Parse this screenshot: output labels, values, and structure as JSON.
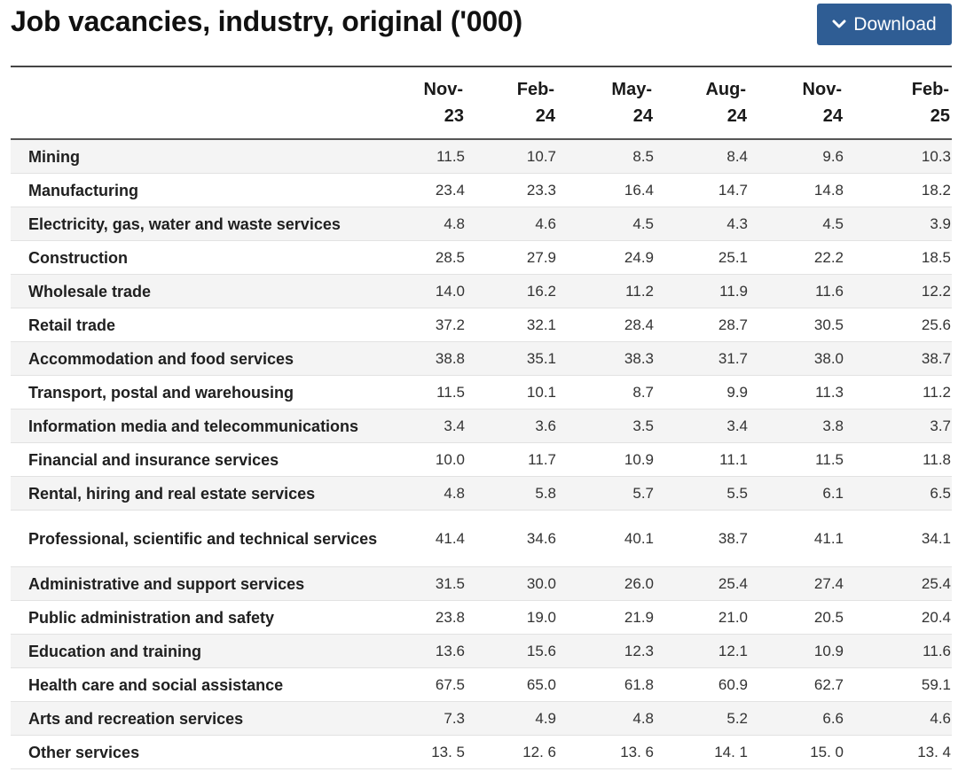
{
  "title": "Job vacancies, industry, original ('000)",
  "download": {
    "label": "Download",
    "icon": "chevron-down-icon"
  },
  "colors": {
    "button_bg": "#2f5d94",
    "stripe": "#f4f4f4"
  },
  "table": {
    "columns": [
      {
        "mon": "Nov-",
        "yr": "23"
      },
      {
        "mon": "Feb-",
        "yr": "24"
      },
      {
        "mon": "May-",
        "yr": "24"
      },
      {
        "mon": "Aug-",
        "yr": "24"
      },
      {
        "mon": "Nov-",
        "yr": "24"
      },
      {
        "mon": "Feb-",
        "yr": "25"
      }
    ],
    "rows": [
      {
        "label": "Mining",
        "values": [
          "11.5",
          "10.7",
          "8.5",
          "8.4",
          "9.6",
          "10.3"
        ]
      },
      {
        "label": "Manufacturing",
        "values": [
          "23.4",
          "23.3",
          "16.4",
          "14.7",
          "14.8",
          "18.2"
        ]
      },
      {
        "label": "Electricity, gas, water and waste services",
        "values": [
          "4.8",
          "4.6",
          "4.5",
          "4.3",
          "4.5",
          "3.9"
        ]
      },
      {
        "label": "Construction",
        "values": [
          "28.5",
          "27.9",
          "24.9",
          "25.1",
          "22.2",
          "18.5"
        ]
      },
      {
        "label": "Wholesale trade",
        "values": [
          "14.0",
          "16.2",
          "11.2",
          "11.9",
          "11.6",
          "12.2"
        ]
      },
      {
        "label": "Retail trade",
        "values": [
          "37.2",
          "32.1",
          "28.4",
          "28.7",
          "30.5",
          "25.6"
        ]
      },
      {
        "label": "Accommodation and food services",
        "values": [
          "38.8",
          "35.1",
          "38.3",
          "31.7",
          "38.0",
          "38.7"
        ]
      },
      {
        "label": "Transport, postal and warehousing",
        "values": [
          "11.5",
          "10.1",
          "8.7",
          "9.9",
          "11.3",
          "11.2"
        ]
      },
      {
        "label": "Information media and telecommunications",
        "values": [
          "3.4",
          "3.6",
          "3.5",
          "3.4",
          "3.8",
          "3.7"
        ]
      },
      {
        "label": "Financial and insurance services",
        "values": [
          "10.0",
          "11.7",
          "10.9",
          "11.1",
          "11.5",
          "11.8"
        ]
      },
      {
        "label": "Rental, hiring and real estate services",
        "values": [
          "4.8",
          "5.8",
          "5.7",
          "5.5",
          "6.1",
          "6.5"
        ]
      },
      {
        "label": "Professional, scientific and technical services",
        "values": [
          "41.4",
          "34.6",
          "40.1",
          "38.7",
          "41.1",
          "34.1"
        ]
      },
      {
        "label": "Administrative and support services",
        "values": [
          "31.5",
          "30.0",
          "26.0",
          "25.4",
          "27.4",
          "25.4"
        ]
      },
      {
        "label": "Public administration and safety",
        "values": [
          "23.8",
          "19.0",
          "21.9",
          "21.0",
          "20.5",
          "20.4"
        ]
      },
      {
        "label": "Education and training",
        "values": [
          "13.6",
          "15.6",
          "12.3",
          "12.1",
          "10.9",
          "11.6"
        ]
      },
      {
        "label": "Health care and social assistance",
        "values": [
          "67.5",
          "65.0",
          "61.8",
          "60.9",
          "62.7",
          "59.1"
        ]
      },
      {
        "label": "Arts and recreation services",
        "values": [
          "7.3",
          "4.9",
          "4.8",
          "5.2",
          "6.6",
          "4.6"
        ]
      },
      {
        "label": "Other services",
        "values": [
          "13. 5",
          "12. 6",
          "13. 6",
          "14. 1",
          "15. 0",
          "13. 4"
        ]
      }
    ]
  }
}
